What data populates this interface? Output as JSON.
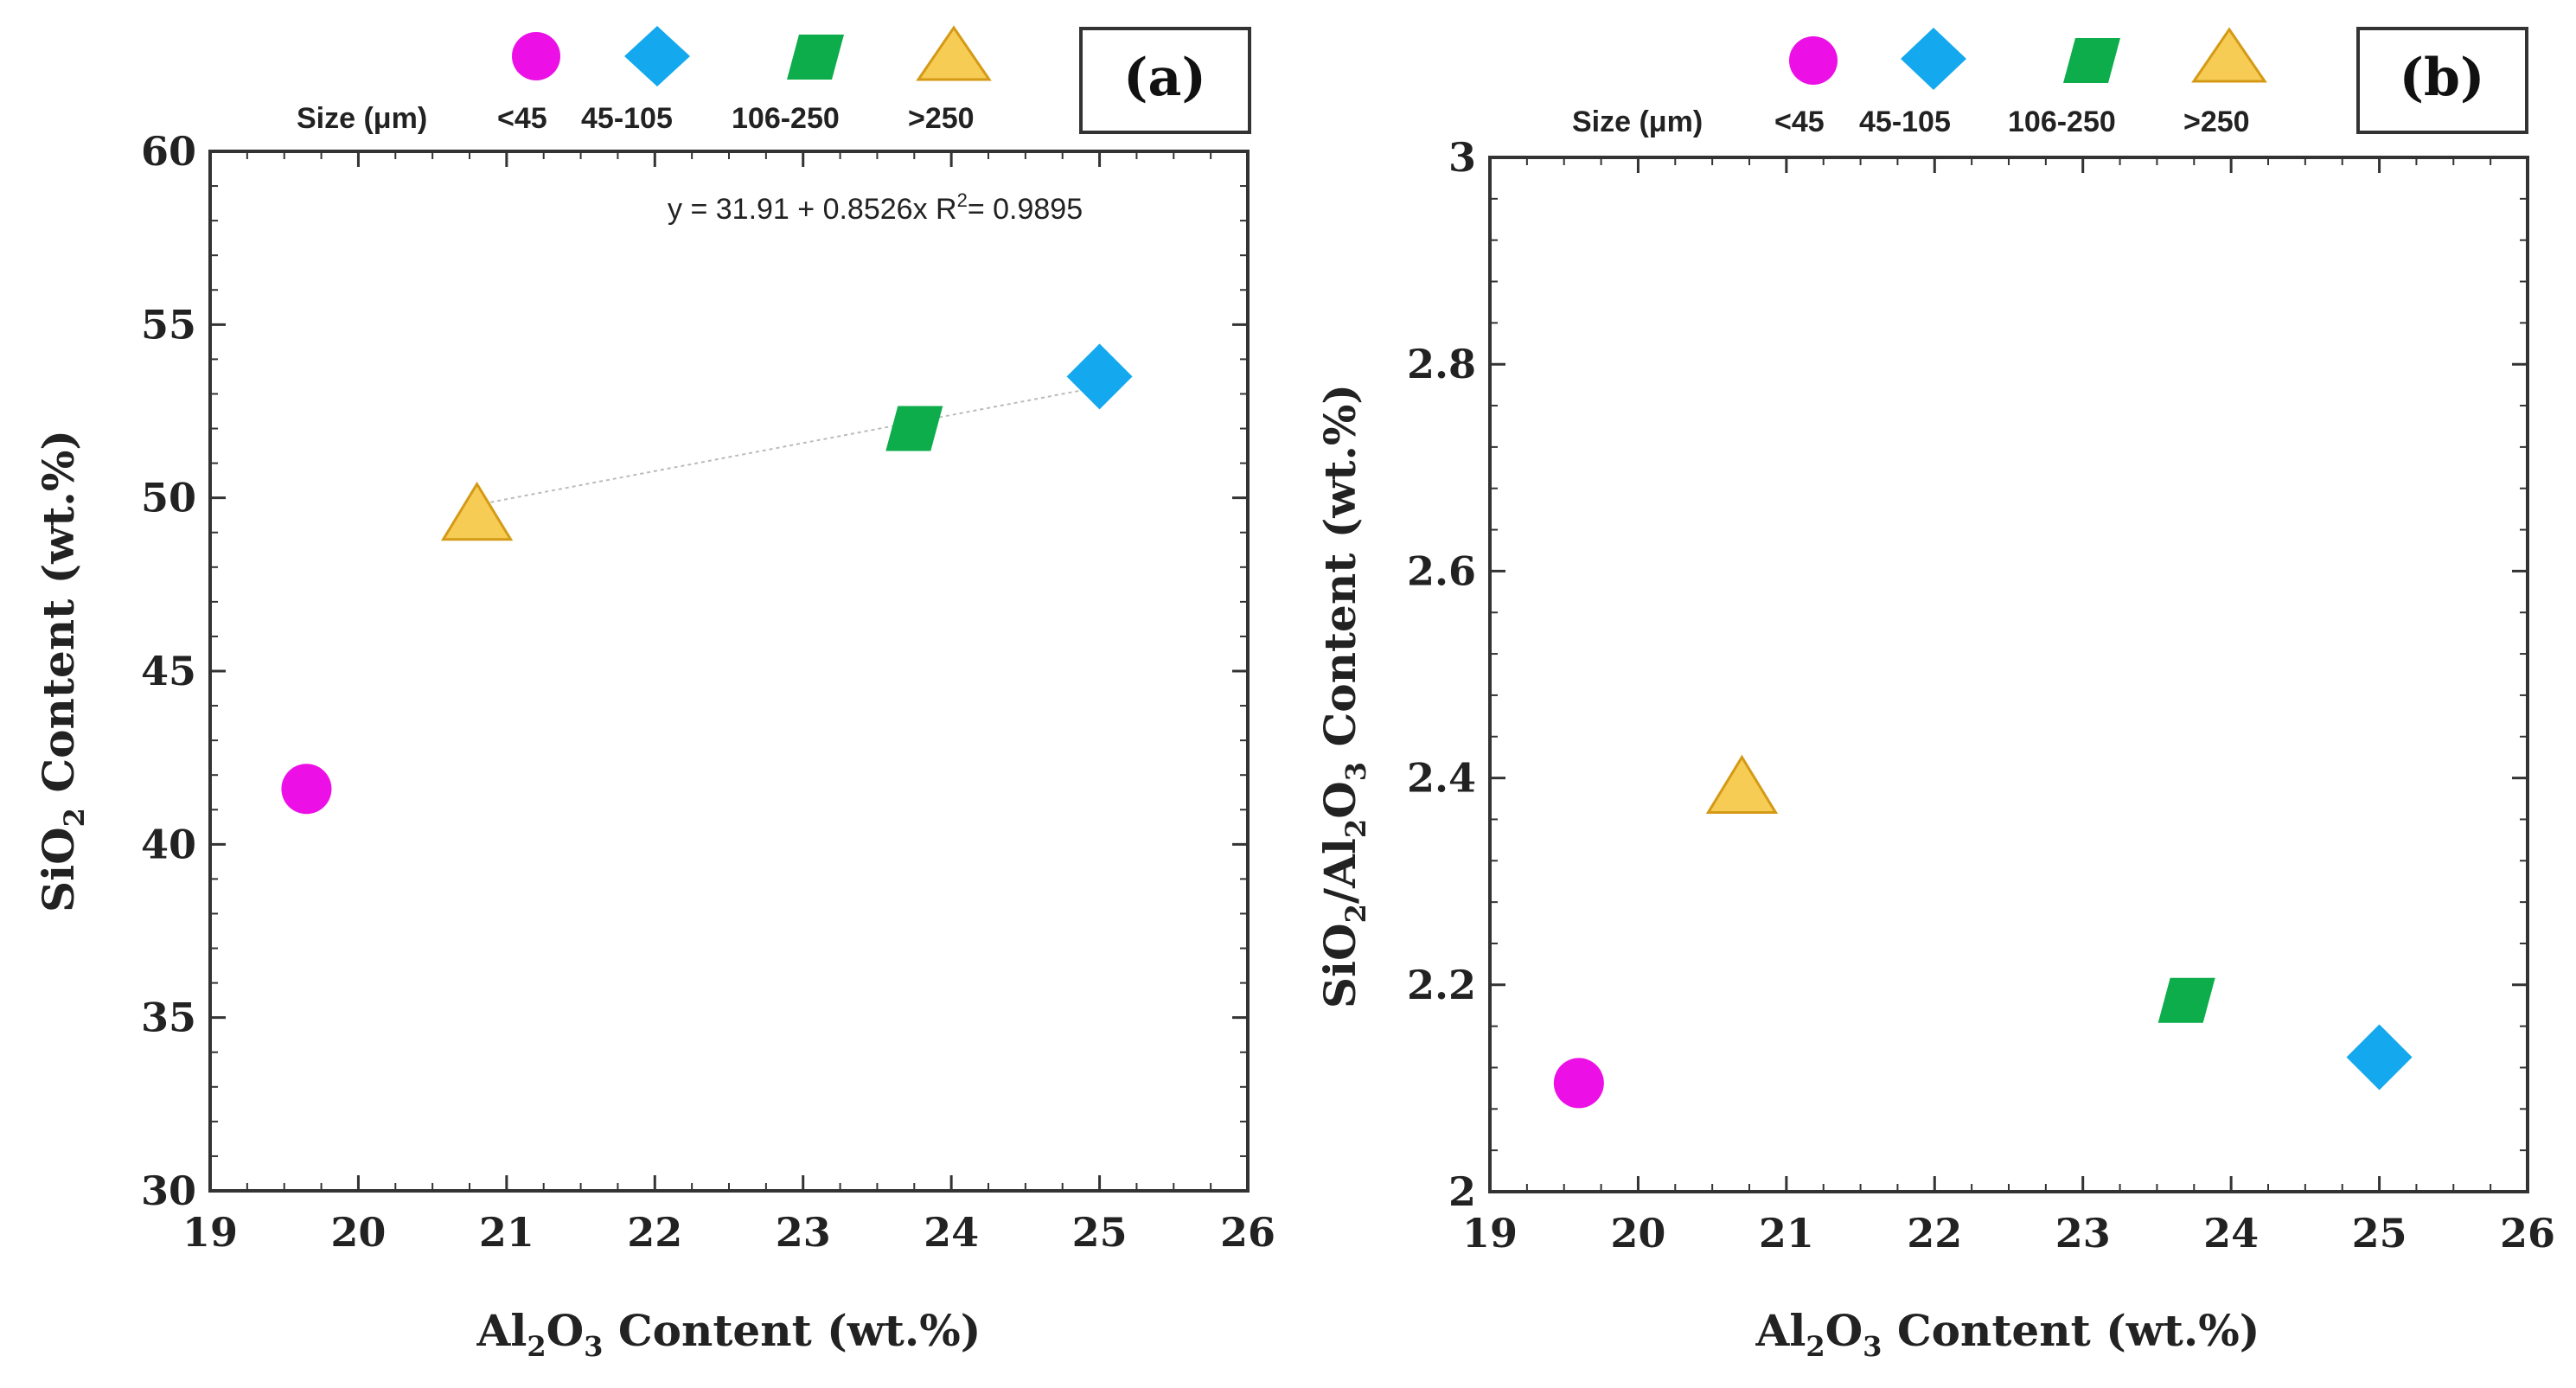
{
  "legend": {
    "title": "Size (μm)",
    "items": [
      {
        "label": "<45",
        "shape": "circle",
        "color": "#EC10E6"
      },
      {
        "label": "45-105",
        "shape": "diamond",
        "color": "#14A8EE"
      },
      {
        "label": "106-250",
        "shape": "parallelogram",
        "color": "#0DAD4B"
      },
      {
        "label": ">250",
        "shape": "triangle",
        "color": "#F7CC55"
      }
    ]
  },
  "chart_data": [
    {
      "panel": "(a)",
      "type": "scatter",
      "xlabel": {
        "main": "Al",
        "sub1": "2",
        "mid": "O",
        "sub2": "3",
        "rest": " Content (wt.%)"
      },
      "ylabel": {
        "main": "SiO",
        "sub1": "2",
        "rest": " Content (wt.%)"
      },
      "xlim": [
        19,
        26
      ],
      "ylim": [
        30,
        60
      ],
      "xticks": [
        "19",
        "20",
        "21",
        "22",
        "23",
        "24",
        "25",
        "26"
      ],
      "yticks": [
        "30",
        "35",
        "40",
        "45",
        "50",
        "55",
        "60"
      ],
      "annotation": {
        "text": "y = 31.91 + 0.8526x  R",
        "sup": "2",
        "tail": "= 0.9895"
      },
      "trendline": {
        "x": [
          20.8,
          25.0
        ],
        "y": [
          49.8,
          53.2
        ]
      },
      "series": [
        {
          "name": "<45",
          "x": 19.65,
          "y": 41.6
        },
        {
          "name": "45-105",
          "x": 25.0,
          "y": 53.5
        },
        {
          "name": "106-250",
          "x": 23.75,
          "y": 52.0
        },
        {
          "name": ">250",
          "x": 20.8,
          "y": 49.5
        }
      ]
    },
    {
      "panel": "(b)",
      "type": "scatter",
      "xlabel": {
        "main": "Al",
        "sub1": "2",
        "mid": "O",
        "sub2": "3",
        "rest": " Content (wt.%)"
      },
      "ylabel": {
        "text": "SiO",
        "sub1": "2",
        "mid": "/Al",
        "sub2": "2",
        "mid2": "O",
        "sub3": "3",
        "rest": "  Content (wt.%)"
      },
      "xlim": [
        19,
        26
      ],
      "ylim": [
        2,
        3
      ],
      "xticks": [
        "19",
        "20",
        "21",
        "22",
        "23",
        "24",
        "25",
        "26"
      ],
      "yticks": [
        "2",
        "2.2",
        "2.4",
        "2.6",
        "2.8",
        "3"
      ],
      "series": [
        {
          "name": "<45",
          "x": 19.6,
          "y": 2.105
        },
        {
          "name": "45-105",
          "x": 25.0,
          "y": 2.13
        },
        {
          "name": "106-250",
          "x": 23.7,
          "y": 2.185
        },
        {
          "name": ">250",
          "x": 20.7,
          "y": 2.39
        }
      ]
    }
  ]
}
